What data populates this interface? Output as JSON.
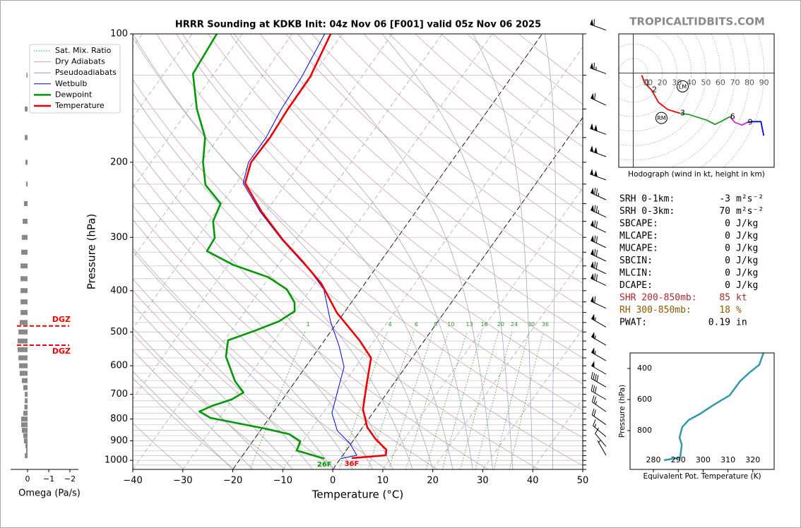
{
  "chart_data": [
    {
      "type": "skewt",
      "title": "HRRR Sounding at KDKB Init: 04z Nov 06 [F001] valid 05z Nov 06 2025",
      "xlabel": "Temperature (°C)",
      "ylabel": "Pressure (hPa)",
      "xlim": [
        -40,
        50
      ],
      "ylim": [
        1050,
        100
      ],
      "log_scale": true,
      "xticks": [
        {
          "value": -40,
          "label": "−40"
        },
        {
          "value": -30,
          "label": "−30"
        },
        {
          "value": -20,
          "label": "−20"
        },
        {
          "value": -10,
          "label": "−10"
        },
        0,
        10,
        20,
        30,
        40,
        50
      ],
      "yticks": [
        100,
        200,
        300,
        400,
        500,
        600,
        700,
        800,
        900,
        1000
      ],
      "ygrid": [
        100,
        125,
        150,
        175,
        200,
        225,
        250,
        275,
        300,
        325,
        350,
        375,
        400,
        425,
        450,
        475,
        500,
        525,
        550,
        575,
        600,
        625,
        650,
        675,
        700,
        725,
        750,
        775,
        800,
        825,
        850,
        875,
        900,
        925,
        950,
        975,
        1000,
        1025,
        1050
      ],
      "dashed_isotherms": [
        -20,
        0
      ],
      "mixing_ratios": [
        1,
        4,
        6,
        8,
        10,
        13,
        16,
        20,
        24,
        30,
        36
      ],
      "background_lines": [
        {
          "name": "Sat. Mix. Ratio",
          "color": "#2e9a2e"
        },
        {
          "name": "Dry Adiabats",
          "color": "#d9a3a3"
        },
        {
          "name": "Pseudoadiabats",
          "color": "#9a9ac8"
        }
      ],
      "series": [
        {
          "name": "Wetbulb",
          "color": "#0000ee",
          "pressure": [
            991,
            973,
            912,
            852,
            774,
            690,
            604,
            539,
            472,
            397,
            361,
            304,
            261,
            224,
            200,
            175,
            150,
            126,
            100
          ],
          "values": [
            0.0,
            2.8,
            -0.3,
            -4.6,
            -8.2,
            -10.1,
            -12.3,
            -16.3,
            -21.5,
            -27.4,
            -32.5,
            -42.8,
            -51.2,
            -58.6,
            -60.5,
            -60.5,
            -61.5,
            -62.0,
            -63.5
          ]
        },
        {
          "name": "Dewpoint",
          "color": "#009900",
          "surface_label": "26F",
          "pressure": [
            991,
            948,
            902,
            868,
            842,
            795,
            768,
            745,
            720,
            693,
            652,
            571,
            523,
            496,
            472,
            447,
            426,
            397,
            372,
            348,
            323,
            301,
            275,
            250,
            226,
            200,
            175,
            150,
            124,
            100
          ],
          "values": [
            -3.2,
            -9.9,
            -10.5,
            -13.7,
            -19.4,
            -31.8,
            -34.9,
            -33.2,
            -30.2,
            -28.8,
            -32.1,
            -37.4,
            -39.3,
            -35.2,
            -31.8,
            -30.1,
            -31.4,
            -34.8,
            -40.2,
            -49.0,
            -56.2,
            -56.5,
            -59.2,
            -60.2,
            -65.9,
            -69.6,
            -72.7,
            -78.4,
            -84.2,
            -85.1
          ]
        },
        {
          "name": "Temperature",
          "color": "#ee0000",
          "surface_label": "36F",
          "pressure": [
            988,
            973,
            944,
            892,
            836,
            759,
            677,
            575,
            523,
            451,
            385,
            341,
            304,
            261,
            224,
            200,
            175,
            150,
            126,
            100
          ],
          "values": [
            2.2,
            8.6,
            7.9,
            4.3,
            0.9,
            -2.5,
            -4.9,
            -8.2,
            -13.0,
            -21.4,
            -28.7,
            -35.7,
            -42.6,
            -50.9,
            -58.2,
            -60.0,
            -59.7,
            -60.2,
            -60.3,
            -62.3
          ]
        }
      ],
      "winds": {
        "pressure": [
          98,
          124,
          147,
          172,
          194,
          220,
          245,
          269,
          292,
          317,
          341,
          365,
          389,
          440,
          487,
          537,
          584,
          628,
          673,
          720,
          769,
          825,
          880,
          928,
          973
        ],
        "speed": [
          60,
          65,
          60,
          100,
          100,
          100,
          75,
          75,
          70,
          70,
          70,
          70,
          70,
          60,
          55,
          55,
          55,
          50,
          40,
          30,
          25,
          20,
          15,
          10,
          5
        ],
        "direction": [
          290,
          290,
          295,
          290,
          290,
          290,
          295,
          295,
          295,
          295,
          295,
          295,
          295,
          295,
          300,
          300,
          300,
          300,
          300,
          300,
          305,
          305,
          310,
          320,
          330
        ]
      }
    },
    {
      "type": "hbar",
      "xlabel": "Omega (Pa/s)",
      "xlim": [
        0.8,
        -2.4
      ],
      "ylim": [
        1050,
        100
      ],
      "log_scale": true,
      "xticks": [
        0,
        {
          "value": -1,
          "label": "−1"
        },
        {
          "value": -2,
          "label": "−2"
        }
      ],
      "color": "#888888",
      "pressure": [
        125,
        150,
        175,
        200,
        225,
        250,
        275,
        300,
        325,
        350,
        375,
        400,
        425,
        450,
        475,
        500,
        525,
        550,
        575,
        600,
        625,
        650,
        675,
        700,
        725,
        750,
        775,
        800,
        825,
        850,
        875,
        900,
        925,
        950,
        975
      ],
      "values": [
        0.05,
        0.13,
        0.13,
        0.1,
        0.07,
        0.17,
        0.23,
        0.27,
        0.3,
        0.33,
        0.33,
        0.33,
        0.33,
        0.33,
        0.37,
        0.43,
        0.47,
        0.47,
        0.43,
        0.4,
        0.37,
        0.27,
        0.2,
        0.13,
        0.13,
        0.15,
        0.2,
        0.3,
        0.3,
        0.27,
        0.2,
        0.17,
        0.1,
        0.07,
        0.13
      ],
      "dgz": {
        "label": "DGZ",
        "color": "#ee0000",
        "pressure": [
          484,
          537
        ]
      }
    },
    {
      "type": "hodograph",
      "caption": "Hodograph (wind in kt, height in km)",
      "xlim": [
        -10,
        97
      ],
      "ylim": [
        -65,
        27
      ],
      "xticks": [
        10,
        20,
        30,
        40,
        50,
        60,
        70,
        80,
        90
      ],
      "series": [
        {
          "color": "#ee0000",
          "x": [
            5.8,
            7.8,
            12.6,
            17.5,
            23.8,
            32
          ],
          "values": [
            -1.5,
            -6.8,
            -11.7,
            -20.4,
            -25.2,
            -27.7
          ]
        },
        {
          "color": "#229922",
          "x": [
            32,
            38.3,
            50.5,
            56.3,
            60.2,
            66.5
          ],
          "values": [
            -27.7,
            -28.6,
            -32.5,
            -35.4,
            -33.5,
            -30.1
          ]
        },
        {
          "color": "#cc22cc",
          "x": [
            66.5,
            69.9,
            74.8,
            78.6
          ],
          "values": [
            -30.1,
            -34,
            -35.9,
            -34
          ]
        },
        {
          "color": "#0000ee",
          "x": [
            78.6,
            82,
            87.9,
            89.8
          ],
          "values": [
            -34,
            -33.5,
            -33.5,
            -43.2
          ]
        }
      ],
      "height_labels": [
        {
          "label": "1",
          "x": 7.8,
          "y": -6.8
        },
        {
          "label": "2",
          "x": 12.6,
          "y": -11.7
        },
        {
          "label": "3",
          "x": 32,
          "y": -27.7
        },
        {
          "label": "6",
          "x": 66.5,
          "y": -30.1
        },
        {
          "label": "9",
          "x": 78.6,
          "y": -34
        }
      ],
      "storm_motion": [
        {
          "label": "LM",
          "x": 34,
          "y": -9.2
        },
        {
          "label": "RM",
          "x": 19.4,
          "y": -31
        }
      ]
    },
    {
      "type": "line",
      "xlabel": "Equivalent Pot. Temperature (K)",
      "ylabel": "Pressure (hPa)",
      "xlim": [
        270.6,
        328.6
      ],
      "ylim": [
        1050,
        300
      ],
      "xticks": [
        280,
        290,
        300,
        310,
        320
      ],
      "yticks": [
        400,
        600,
        800
      ],
      "color": "#3399aa",
      "pressure": [
        991,
        973,
        891,
        845,
        777,
        732,
        695,
        636,
        573,
        482,
        423,
        377,
        300
      ],
      "values": [
        284.3,
        290.8,
        291.4,
        290.5,
        291.6,
        294.2,
        298.5,
        304.1,
        310.7,
        314.9,
        318.9,
        322.6,
        324.3
      ]
    }
  ],
  "watermark": "TROPICALTIDBITS.COM",
  "stats": [
    {
      "label": "SRH 0-1km:",
      "value": -3,
      "unit": "m²s⁻²",
      "color": "#000000"
    },
    {
      "label": "SRH 0-3km:",
      "value": 70,
      "unit": "m²s⁻²",
      "color": "#000000"
    },
    {
      "label": "SBCAPE:",
      "value": 0,
      "unit": "J/kg",
      "color": "#000000"
    },
    {
      "label": "MLCAPE:",
      "value": 0,
      "unit": "J/kg",
      "color": "#000000"
    },
    {
      "label": "MUCAPE:",
      "value": 0,
      "unit": "J/kg",
      "color": "#000000"
    },
    {
      "label": "SBCIN:",
      "value": 0,
      "unit": "J/kg",
      "color": "#000000"
    },
    {
      "label": "MLCIN:",
      "value": 0,
      "unit": "J/kg",
      "color": "#000000"
    },
    {
      "label": "DCAPE:",
      "value": 0,
      "unit": "J/kg",
      "color": "#000000"
    },
    {
      "label": "SHR 200-850mb:",
      "value": 85,
      "unit": "kt",
      "color": "#a52a2a"
    },
    {
      "label": "RH 300-850mb:",
      "value": 18,
      "unit": "%",
      "color": "#8b5a00"
    },
    {
      "label": "PWAT:",
      "value": 0.19,
      "unit": "in",
      "color": "#000000"
    }
  ]
}
